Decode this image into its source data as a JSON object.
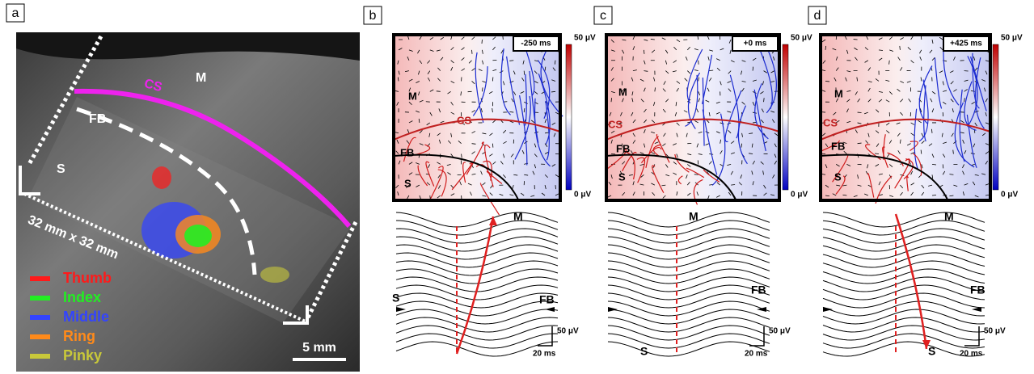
{
  "panel_a": {
    "label": "a",
    "cs": "CS",
    "m": "M",
    "fb": "FB",
    "s": "S",
    "grid_size": "32 mm x 32 mm",
    "scale_bar": "5 mm",
    "legend": [
      {
        "name": "Thumb",
        "color": "#ff1a1a"
      },
      {
        "name": "Index",
        "color": "#22ee22"
      },
      {
        "name": "Middle",
        "color": "#3344ff"
      },
      {
        "name": "Ring",
        "color": "#ff8a1a"
      },
      {
        "name": "Pinky",
        "color": "#c8c83a"
      }
    ]
  },
  "panels": [
    {
      "label": "b",
      "time": "-250 ms",
      "colorbar_max": "50 μV",
      "colorbar_min": "0 μV",
      "map_m": "M",
      "map_cs": "CS",
      "map_fb": "FB",
      "map_s": "S",
      "trace_m": "M",
      "trace_s": "S",
      "trace_fb": "FB",
      "scale_y": "50 μV",
      "scale_x": "20 ms"
    },
    {
      "label": "c",
      "time": "+0 ms",
      "colorbar_max": "50 μV",
      "colorbar_min": "0 μV",
      "map_m": "M",
      "map_cs": "CS",
      "map_fb": "FB",
      "map_s": "S",
      "trace_m": "M",
      "trace_s": "S",
      "trace_fb": "FB",
      "scale_y": "50 μV",
      "scale_x": "20 ms"
    },
    {
      "label": "d",
      "time": "+425 ms",
      "colorbar_max": "50 μV",
      "colorbar_min": "0 μV",
      "map_m": "M",
      "map_cs": "CS",
      "map_fb": "FB",
      "map_s": "S",
      "trace_m": "M",
      "trace_s": "S",
      "trace_fb": "FB",
      "scale_y": "50 μV",
      "scale_x": "20 ms"
    }
  ]
}
